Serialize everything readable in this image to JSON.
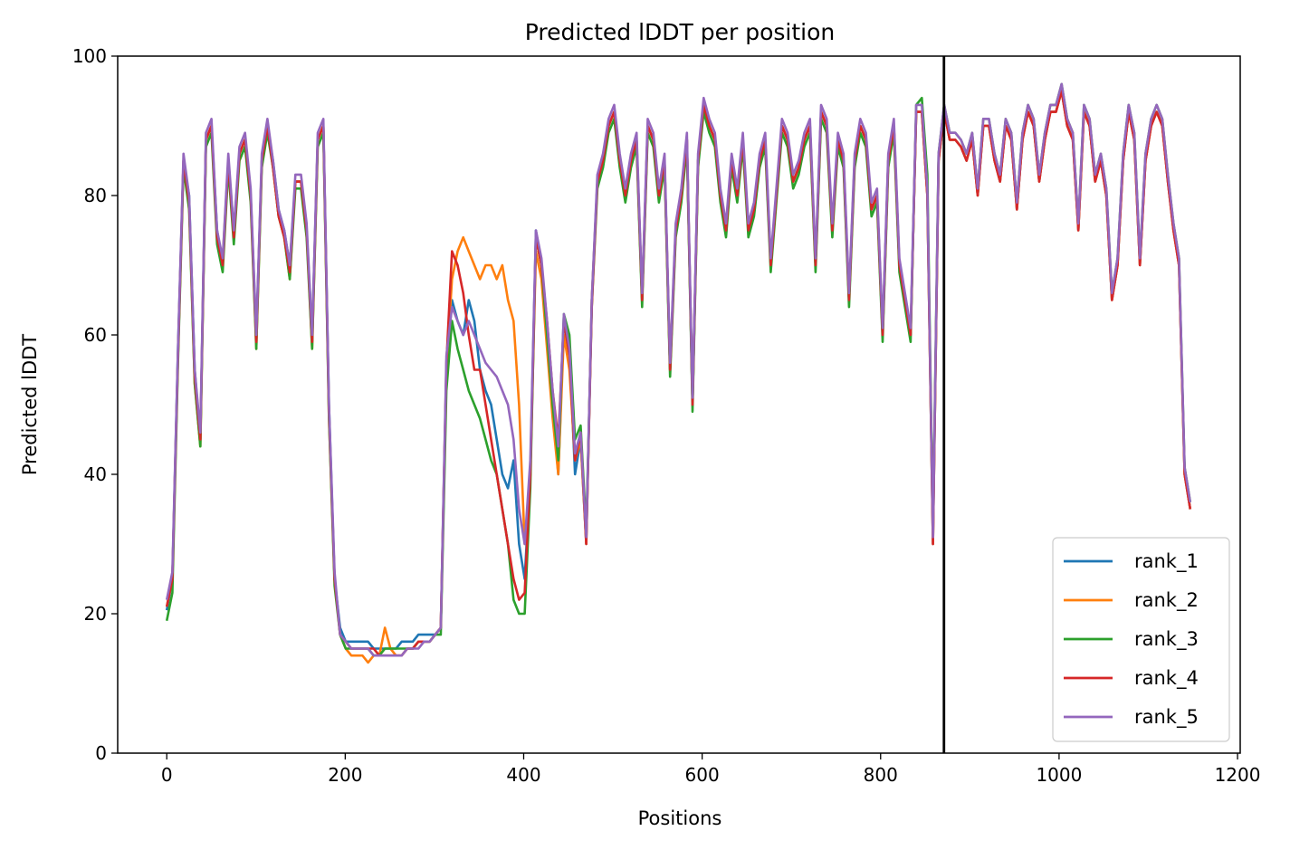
{
  "chart_data": {
    "type": "line",
    "title": "Predicted lDDT per position",
    "xlabel": "Positions",
    "ylabel": "Predicted lDDT",
    "xlim": [
      -55,
      1203
    ],
    "ylim": [
      0,
      100
    ],
    "xticks": [
      0,
      200,
      400,
      600,
      800,
      1000,
      1200
    ],
    "yticks": [
      0,
      20,
      40,
      60,
      80,
      100
    ],
    "grid": false,
    "legend_position": "lower-right",
    "vline_x": 871,
    "vline_color": "#000000",
    "x_max": 1147,
    "series": [
      {
        "name": "rank_1",
        "color": "#1f77b4",
        "values": [
          20.5,
          25,
          58,
          85,
          80,
          55,
          45,
          88,
          90,
          75,
          70,
          85,
          75,
          86,
          88,
          80,
          60,
          85,
          90,
          85,
          78,
          75,
          70,
          82,
          82,
          75,
          60,
          88,
          90,
          50,
          25,
          18,
          16,
          16,
          16,
          16,
          16,
          15,
          15,
          15,
          15,
          15,
          16,
          16,
          16,
          17,
          17,
          17,
          17,
          18,
          55,
          65,
          62,
          60,
          65,
          62,
          55,
          52,
          50,
          45,
          40,
          38,
          42,
          30,
          25,
          40,
          75,
          70,
          60,
          50,
          40,
          62,
          58,
          40,
          45,
          30,
          65,
          82,
          85,
          90,
          92,
          85,
          80,
          85,
          88,
          65,
          90,
          88,
          80,
          85,
          55,
          75,
          80,
          88,
          50,
          85,
          93,
          90,
          88,
          80,
          75,
          85,
          80,
          88,
          75,
          78,
          85,
          88,
          70,
          80,
          90,
          88,
          82,
          84,
          88,
          90,
          70,
          92,
          90,
          75,
          88,
          85,
          65,
          85,
          90,
          88,
          78,
          80,
          60,
          85,
          90,
          70,
          65,
          60,
          92,
          92,
          80,
          30,
          85,
          92,
          88,
          88,
          87,
          85,
          88,
          80,
          90,
          90,
          85,
          82,
          90,
          88,
          78,
          88,
          92,
          90,
          82,
          88,
          92,
          92,
          95,
          90,
          88,
          75,
          92,
          90,
          82,
          85,
          80,
          65,
          70,
          85,
          92,
          88,
          70,
          85,
          90,
          92,
          90,
          82,
          75,
          70,
          40,
          35
        ]
      },
      {
        "name": "rank_2",
        "color": "#ff7f0e",
        "values": [
          21,
          25,
          57,
          85,
          79,
          53,
          44,
          88,
          90,
          74,
          71,
          85,
          74,
          86,
          88,
          80,
          58,
          85,
          90,
          84,
          77,
          74,
          68,
          82,
          82,
          75,
          58,
          88,
          90,
          48,
          25,
          17,
          15,
          14,
          14,
          14,
          13,
          14,
          14,
          18,
          15,
          14,
          14,
          15,
          15,
          16,
          16,
          16,
          17,
          18,
          55,
          68,
          72,
          74,
          72,
          70,
          68,
          70,
          70,
          68,
          70,
          65,
          62,
          50,
          30,
          40,
          72,
          68,
          58,
          48,
          40,
          60,
          55,
          42,
          45,
          30,
          65,
          82,
          85,
          90,
          92,
          85,
          80,
          85,
          88,
          65,
          90,
          88,
          80,
          85,
          55,
          75,
          80,
          88,
          50,
          85,
          93,
          90,
          88,
          80,
          75,
          85,
          80,
          88,
          75,
          78,
          85,
          88,
          70,
          80,
          90,
          88,
          82,
          84,
          88,
          90,
          70,
          92,
          90,
          75,
          88,
          85,
          65,
          85,
          90,
          88,
          78,
          80,
          60,
          85,
          90,
          70,
          65,
          60,
          92,
          92,
          80,
          30,
          85,
          92,
          88,
          88,
          87,
          85,
          88,
          80,
          90,
          90,
          85,
          82,
          90,
          88,
          78,
          88,
          92,
          90,
          82,
          88,
          92,
          92,
          95,
          90,
          88,
          75,
          92,
          90,
          82,
          85,
          80,
          65,
          70,
          85,
          92,
          88,
          70,
          85,
          90,
          92,
          90,
          82,
          75,
          70,
          40,
          35
        ]
      },
      {
        "name": "rank_3",
        "color": "#2ca02c",
        "values": [
          19,
          23,
          56,
          84,
          78,
          53,
          44,
          87,
          89,
          73,
          69,
          84,
          73,
          85,
          87,
          79,
          58,
          84,
          89,
          84,
          77,
          74,
          68,
          81,
          81,
          74,
          58,
          87,
          89,
          48,
          24,
          17,
          15,
          15,
          15,
          15,
          15,
          14,
          14,
          15,
          15,
          15,
          15,
          15,
          15,
          16,
          16,
          16,
          17,
          17,
          52,
          62,
          58,
          55,
          52,
          50,
          48,
          45,
          42,
          40,
          35,
          30,
          22,
          20,
          20,
          38,
          74,
          70,
          60,
          50,
          42,
          63,
          60,
          45,
          47,
          32,
          64,
          81,
          84,
          89,
          91,
          84,
          79,
          84,
          87,
          64,
          89,
          87,
          79,
          84,
          54,
          74,
          79,
          87,
          49,
          84,
          92,
          89,
          87,
          79,
          74,
          84,
          79,
          87,
          74,
          77,
          84,
          87,
          69,
          79,
          89,
          87,
          81,
          83,
          87,
          89,
          69,
          91,
          89,
          74,
          87,
          84,
          64,
          84,
          89,
          87,
          77,
          79,
          59,
          84,
          89,
          69,
          64,
          59,
          93,
          94,
          83,
          32,
          86,
          93,
          89,
          89,
          88,
          86,
          89,
          81,
          91,
          91,
          86,
          83,
          91,
          89,
          79,
          89,
          93,
          91,
          83,
          89,
          93,
          93,
          96,
          91,
          89,
          76,
          93,
          91,
          83,
          86,
          81,
          66,
          71,
          86,
          93,
          89,
          71,
          86,
          91,
          93,
          91,
          83,
          76,
          71,
          41,
          36
        ]
      },
      {
        "name": "rank_4",
        "color": "#d62728",
        "values": [
          21,
          25,
          57,
          85,
          79,
          54,
          45,
          88,
          90,
          74,
          70,
          85,
          74,
          86,
          88,
          80,
          59,
          85,
          90,
          84,
          77,
          74,
          69,
          82,
          82,
          75,
          59,
          88,
          90,
          49,
          25,
          17,
          16,
          15,
          15,
          15,
          15,
          15,
          14,
          14,
          14,
          14,
          14,
          15,
          15,
          16,
          16,
          16,
          17,
          18,
          56,
          72,
          70,
          66,
          60,
          55,
          55,
          50,
          45,
          40,
          35,
          30,
          25,
          22,
          23,
          40,
          74,
          70,
          62,
          52,
          45,
          62,
          57,
          42,
          46,
          30,
          64,
          82,
          85,
          90,
          92,
          85,
          80,
          85,
          88,
          65,
          90,
          88,
          80,
          85,
          55,
          75,
          80,
          88,
          50,
          85,
          93,
          90,
          88,
          80,
          75,
          85,
          80,
          88,
          75,
          78,
          85,
          88,
          70,
          80,
          90,
          88,
          82,
          84,
          88,
          90,
          70,
          92,
          90,
          75,
          88,
          85,
          65,
          85,
          90,
          88,
          78,
          80,
          60,
          85,
          90,
          70,
          65,
          60,
          92,
          92,
          80,
          30,
          85,
          92,
          88,
          88,
          87,
          85,
          88,
          80,
          90,
          90,
          85,
          82,
          90,
          88,
          78,
          88,
          92,
          90,
          82,
          88,
          92,
          92,
          95,
          90,
          88,
          75,
          92,
          90,
          82,
          85,
          80,
          65,
          70,
          85,
          92,
          88,
          70,
          85,
          90,
          92,
          90,
          82,
          75,
          70,
          40,
          35
        ]
      },
      {
        "name": "rank_5",
        "color": "#9467bd",
        "values": [
          22,
          26,
          58,
          86,
          80,
          55,
          46,
          89,
          91,
          75,
          71,
          86,
          75,
          87,
          89,
          81,
          60,
          86,
          91,
          85,
          78,
          75,
          70,
          83,
          83,
          76,
          60,
          89,
          91,
          50,
          26,
          17,
          16,
          15,
          15,
          15,
          15,
          14,
          14,
          14,
          14,
          14,
          14,
          15,
          15,
          15,
          16,
          16,
          17,
          18,
          57,
          64,
          62,
          60,
          62,
          60,
          58,
          56,
          55,
          54,
          52,
          50,
          45,
          35,
          30,
          42,
          75,
          71,
          62,
          52,
          44,
          63,
          58,
          43,
          46,
          31,
          65,
          83,
          86,
          91,
          93,
          86,
          81,
          86,
          89,
          66,
          91,
          89,
          81,
          86,
          56,
          76,
          81,
          89,
          51,
          86,
          94,
          91,
          89,
          81,
          76,
          86,
          81,
          89,
          76,
          79,
          86,
          89,
          71,
          81,
          91,
          89,
          83,
          85,
          89,
          91,
          71,
          93,
          91,
          76,
          89,
          86,
          66,
          86,
          91,
          89,
          79,
          81,
          61,
          86,
          91,
          71,
          66,
          61,
          93,
          93,
          81,
          31,
          86,
          93,
          89,
          89,
          88,
          86,
          89,
          81,
          91,
          91,
          86,
          83,
          91,
          89,
          79,
          89,
          93,
          91,
          83,
          89,
          93,
          93,
          96,
          91,
          89,
          76,
          93,
          91,
          83,
          86,
          81,
          66,
          71,
          86,
          93,
          89,
          71,
          86,
          91,
          93,
          91,
          83,
          76,
          71,
          41,
          36
        ]
      }
    ]
  }
}
